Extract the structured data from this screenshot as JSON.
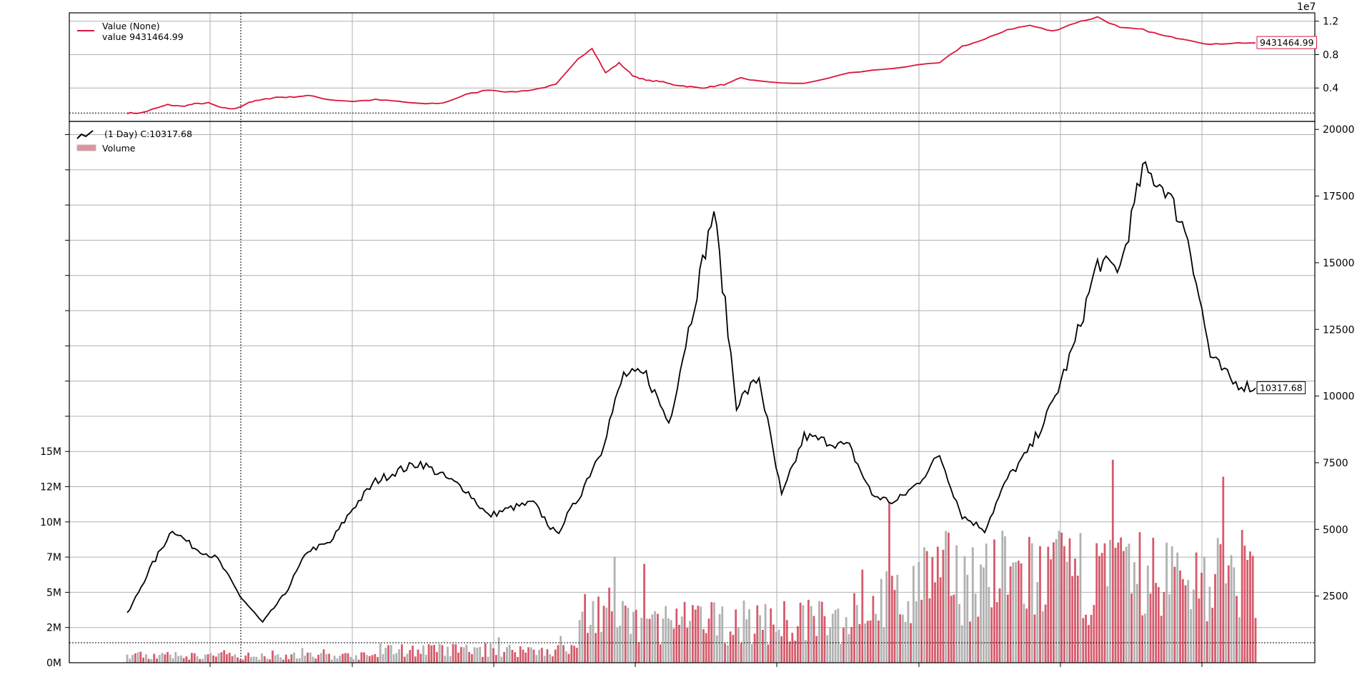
{
  "chart_data": [
    {
      "type": "line",
      "panel": "value",
      "offset_label": "1e7",
      "yticks": [
        0.4,
        0.8,
        1.2
      ],
      "ylim": [
        0,
        1.3
      ],
      "grid": true,
      "legend_position": "top-left",
      "legend": {
        "name": "Value (None)",
        "value_line": "value 9431464.99"
      },
      "last_value_label": "9431464.99",
      "reference_level": 0.1,
      "line_color": "#dc143c",
      "x": [
        0,
        3,
        6,
        9,
        12,
        15,
        18,
        21,
        24,
        27,
        30,
        33,
        36,
        40,
        45,
        50,
        55,
        60,
        65,
        70,
        75,
        80,
        85,
        90,
        95,
        100,
        103,
        106,
        109,
        112,
        115,
        118,
        121,
        124,
        127,
        130,
        133,
        136,
        140,
        150,
        160,
        170,
        180,
        185,
        190,
        195,
        200,
        205,
        210,
        215,
        220,
        225,
        230,
        235,
        240,
        245,
        250
      ],
      "values": [
        0.1,
        0.1,
        0.15,
        0.2,
        0.18,
        0.21,
        0.22,
        0.16,
        0.15,
        0.23,
        0.26,
        0.29,
        0.29,
        0.31,
        0.26,
        0.24,
        0.26,
        0.24,
        0.21,
        0.22,
        0.32,
        0.38,
        0.35,
        0.38,
        0.44,
        0.75,
        0.88,
        0.58,
        0.7,
        0.55,
        0.49,
        0.48,
        0.44,
        0.42,
        0.4,
        0.42,
        0.45,
        0.52,
        0.48,
        0.45,
        0.58,
        0.64,
        0.7,
        0.9,
        0.98,
        1.1,
        1.15,
        1.08,
        1.18,
        1.25,
        1.12,
        1.1,
        1.02,
        0.98,
        0.92,
        0.94,
        0.94
      ]
    },
    {
      "type": "line",
      "panel": "price",
      "yticks": [
        2500,
        5000,
        7500,
        10000,
        12500,
        15000,
        17500,
        20000
      ],
      "ylim": [
        0,
        20300
      ],
      "grid": true,
      "legend_position": "top-left",
      "legend": {
        "name": "(1 Day) C:10317.68",
        "volume_name": "Volume"
      },
      "last_value_label": "10317.68",
      "reference_level": 750,
      "line_color": "#000000",
      "x": [
        0,
        5,
        10,
        15,
        20,
        25,
        30,
        35,
        40,
        45,
        50,
        55,
        60,
        65,
        70,
        75,
        80,
        85,
        90,
        95,
        100,
        105,
        110,
        115,
        120,
        125,
        130,
        135,
        140,
        145,
        150,
        155,
        160,
        165,
        170,
        175,
        180,
        185,
        190,
        195,
        200,
        205,
        210,
        215,
        220,
        225,
        230,
        235,
        240,
        245,
        250
      ],
      "values": [
        1800,
        3500,
        5000,
        4300,
        3900,
        2500,
        1500,
        2600,
        4200,
        4500,
        5800,
        6800,
        7200,
        7500,
        7000,
        6500,
        5500,
        5800,
        6000,
        4800,
        6200,
        8000,
        10800,
        10800,
        9000,
        13000,
        17000,
        9700,
        10700,
        6200,
        8500,
        8300,
        8100,
        6300,
        6000,
        6700,
        7800,
        5500,
        5000,
        6900,
        8000,
        9700,
        12000,
        15000,
        14800,
        18500,
        17800,
        16000,
        11500,
        10500,
        10300
      ],
      "volume": {
        "yticks": [
          "0M",
          "2M",
          "5M",
          "7M",
          "10M",
          "12M",
          "15M"
        ],
        "up_color": "#d1495b",
        "down_color": "#a9a9a9"
      }
    }
  ]
}
